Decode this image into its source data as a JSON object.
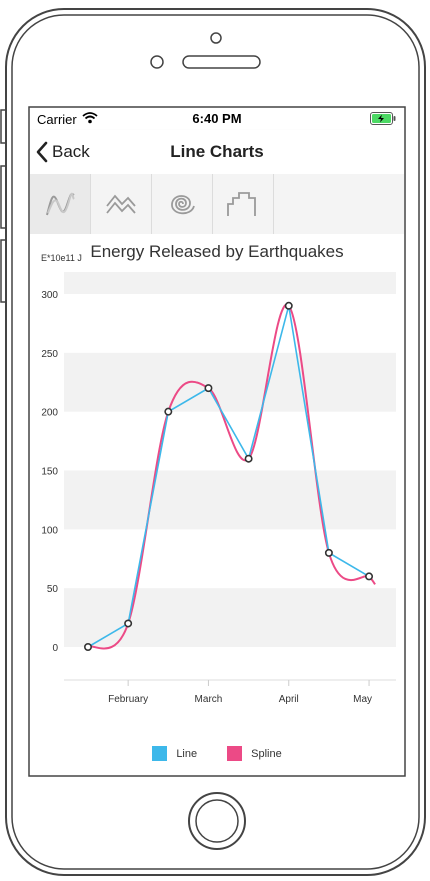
{
  "status_bar": {
    "carrier": "Carrier",
    "time": "6:40 PM"
  },
  "navbar": {
    "back_label": "Back",
    "title": "Line Charts"
  },
  "tabs": [
    {
      "icon": "line-chart-icon",
      "active": true
    },
    {
      "icon": "area-chart-icon",
      "active": false
    },
    {
      "icon": "spiral-chart-icon",
      "active": false
    },
    {
      "icon": "step-chart-icon",
      "active": false
    }
  ],
  "colors": {
    "line": "#3db8ea",
    "spline": "#ec4a86",
    "band": "#f2f2f2",
    "axis_text": "#333333"
  },
  "chart_data": {
    "type": "line",
    "title": "Energy Released by Earthquakes",
    "y_unit": "E*10e11 J",
    "ylim": [
      0,
      300
    ],
    "yticks": [
      0,
      50,
      100,
      150,
      200,
      250,
      300
    ],
    "x_tick_labels": [
      "February",
      "March",
      "April",
      "May"
    ],
    "x_tick_index": [
      1,
      3,
      5,
      7
    ],
    "series": [
      {
        "name": "Line",
        "values": [
          0,
          20,
          200,
          220,
          160,
          290,
          80,
          60
        ]
      },
      {
        "name": "Spline",
        "values": [
          0,
          20,
          200,
          220,
          160,
          290,
          80,
          60
        ]
      }
    ],
    "legend_position": "bottom"
  }
}
